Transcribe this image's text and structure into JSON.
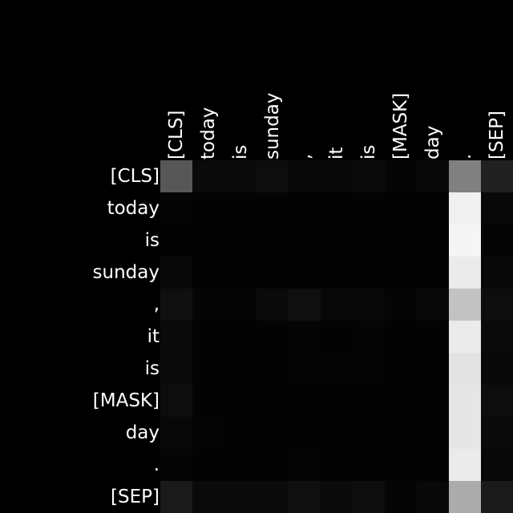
{
  "chart_data": {
    "type": "heatmap",
    "title": "",
    "xlabel": "",
    "ylabel": "",
    "x_categories": [
      "[CLS]",
      "today",
      "is",
      "sunday",
      ",",
      "it",
      "is",
      "[MASK]",
      "day",
      ".",
      "[SEP]"
    ],
    "y_categories": [
      "[CLS]",
      "today",
      "is",
      "sunday",
      ",",
      "it",
      "is",
      "[MASK]",
      "day",
      ".",
      "[SEP]"
    ],
    "colormap": "grayscale",
    "value_range": [
      0,
      1
    ],
    "x_tick_position": "top",
    "x_tick_rotation": "vertical",
    "grid": false,
    "background": "#000000",
    "label_color": "#ffffff",
    "values": [
      [
        0.34,
        0.04,
        0.04,
        0.05,
        0.03,
        0.03,
        0.04,
        0.02,
        0.03,
        0.5,
        0.13
      ],
      [
        0.02,
        0.01,
        0.01,
        0.01,
        0.01,
        0.01,
        0.01,
        0.01,
        0.01,
        0.94,
        0.03
      ],
      [
        0.01,
        0.01,
        0.01,
        0.01,
        0.01,
        0.01,
        0.01,
        0.01,
        0.01,
        0.96,
        0.02
      ],
      [
        0.03,
        0.01,
        0.01,
        0.01,
        0.01,
        0.01,
        0.01,
        0.01,
        0.01,
        0.92,
        0.03
      ],
      [
        0.06,
        0.02,
        0.02,
        0.04,
        0.06,
        0.03,
        0.03,
        0.02,
        0.03,
        0.76,
        0.05
      ],
      [
        0.04,
        0.01,
        0.01,
        0.01,
        0.02,
        0.01,
        0.02,
        0.01,
        0.01,
        0.92,
        0.04
      ],
      [
        0.04,
        0.01,
        0.01,
        0.01,
        0.02,
        0.02,
        0.02,
        0.01,
        0.01,
        0.89,
        0.03
      ],
      [
        0.05,
        0.01,
        0.01,
        0.01,
        0.01,
        0.01,
        0.01,
        0.01,
        0.01,
        0.9,
        0.05
      ],
      [
        0.03,
        0.02,
        0.01,
        0.01,
        0.01,
        0.01,
        0.01,
        0.01,
        0.01,
        0.9,
        0.04
      ],
      [
        0.02,
        0.01,
        0.01,
        0.01,
        0.02,
        0.01,
        0.01,
        0.01,
        0.01,
        0.92,
        0.03
      ],
      [
        0.1,
        0.04,
        0.04,
        0.04,
        0.06,
        0.04,
        0.05,
        0.02,
        0.03,
        0.67,
        0.1
      ]
    ]
  }
}
